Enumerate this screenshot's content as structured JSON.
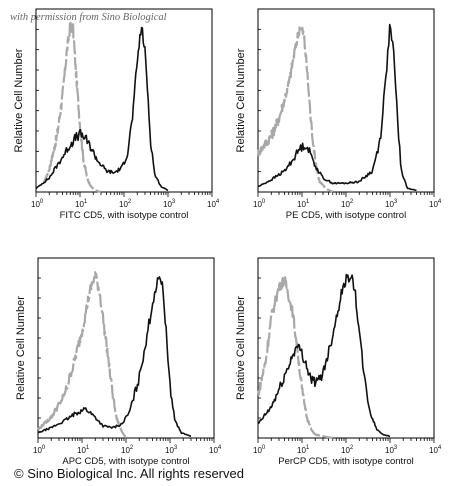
{
  "watermark": "with permission from Sino Biological",
  "copyright": "© Sino Biological Inc. All rights reserved",
  "colors": {
    "isotype": "#a8a8a8",
    "sample": "#111111",
    "frame": "#000000"
  },
  "chart_data": [
    {
      "type": "line",
      "xscale": "log",
      "xlim": [
        1,
        10000
      ],
      "ylabel": "Relative Cell Number",
      "xlabel": "FITC CD5, with isotype control",
      "xticks": [
        "10",
        "10",
        "10",
        "10",
        "10"
      ],
      "xtick_exponents": [
        "0",
        "1",
        "2",
        "3",
        "4"
      ],
      "series": [
        {
          "style": "dashed",
          "color": "#a8a8a8",
          "x": [
            1.5,
            2,
            3,
            4,
            5,
            6,
            7,
            8,
            10,
            12,
            15,
            18,
            22,
            30
          ],
          "y": [
            0.05,
            0.13,
            0.32,
            0.55,
            0.8,
            0.95,
            0.93,
            0.7,
            0.38,
            0.18,
            0.07,
            0.03,
            0.01,
            0
          ]
        },
        {
          "style": "solid",
          "color": "#111111",
          "x": [
            1,
            2,
            4,
            6,
            8,
            10,
            13,
            18,
            25,
            40,
            60,
            90,
            120,
            160,
            200,
            250,
            300,
            350,
            400,
            500,
            700,
            1000
          ],
          "y": [
            0.02,
            0.08,
            0.2,
            0.27,
            0.31,
            0.33,
            0.31,
            0.25,
            0.18,
            0.12,
            0.11,
            0.14,
            0.22,
            0.45,
            0.75,
            0.95,
            0.8,
            0.55,
            0.3,
            0.1,
            0.03,
            0.01
          ]
        }
      ]
    },
    {
      "type": "line",
      "xscale": "log",
      "xlim": [
        1,
        10000
      ],
      "ylabel": "Relative Cell Number",
      "xlabel": "PE CD5, with isotype control",
      "xticks": [
        "10",
        "10",
        "10",
        "10",
        "10"
      ],
      "xtick_exponents": [
        "0",
        "1",
        "2",
        "3",
        "4"
      ],
      "series": [
        {
          "style": "dashed",
          "color": "#a8a8a8",
          "x": [
            1,
            2,
            3,
            5,
            7,
            9,
            11,
            13,
            16,
            20,
            25,
            35,
            50
          ],
          "y": [
            0.22,
            0.32,
            0.42,
            0.62,
            0.82,
            0.95,
            0.9,
            0.7,
            0.4,
            0.18,
            0.06,
            0.02,
            0
          ]
        },
        {
          "style": "solid",
          "color": "#111111",
          "x": [
            1,
            2,
            4,
            6,
            9,
            12,
            15,
            20,
            30,
            50,
            100,
            200,
            400,
            600,
            800,
            1000,
            1200,
            1500,
            1800,
            2500,
            4000
          ],
          "y": [
            0.03,
            0.07,
            0.12,
            0.18,
            0.25,
            0.27,
            0.23,
            0.15,
            0.08,
            0.05,
            0.05,
            0.06,
            0.12,
            0.3,
            0.65,
            0.95,
            0.8,
            0.4,
            0.12,
            0.02,
            0.01
          ]
        }
      ]
    },
    {
      "type": "line",
      "xscale": "log",
      "xlim": [
        1,
        10000
      ],
      "ylabel": "Relative Cell Number",
      "xlabel": "APC CD5, with isotype control",
      "xticks": [
        "10",
        "10",
        "10",
        "10",
        "10"
      ],
      "xtick_exponents": [
        "0",
        "1",
        "2",
        "3",
        "4"
      ],
      "series": [
        {
          "style": "dashed",
          "color": "#a8a8a8",
          "x": [
            1,
            2,
            4,
            6,
            10,
            15,
            20,
            25,
            30,
            40,
            50,
            60,
            80,
            100
          ],
          "y": [
            0.05,
            0.12,
            0.25,
            0.4,
            0.62,
            0.85,
            0.95,
            0.85,
            0.7,
            0.45,
            0.25,
            0.12,
            0.04,
            0
          ]
        },
        {
          "style": "solid",
          "color": "#111111",
          "x": [
            1,
            2,
            4,
            8,
            12,
            15,
            20,
            30,
            50,
            80,
            120,
            200,
            300,
            450,
            600,
            700,
            800,
            1000,
            1300,
            1800,
            3000
          ],
          "y": [
            0.03,
            0.06,
            0.1,
            0.15,
            0.17,
            0.15,
            0.12,
            0.07,
            0.06,
            0.08,
            0.15,
            0.35,
            0.6,
            0.85,
            0.95,
            0.85,
            0.65,
            0.3,
            0.1,
            0.03,
            0.01
          ]
        }
      ]
    },
    {
      "type": "line",
      "xscale": "log",
      "xlim": [
        1,
        10000
      ],
      "ylabel": "Relative Cell Number",
      "xlabel": "PerCP CD5, with isotype control",
      "xticks": [
        "10",
        "10",
        "10",
        "10",
        "10"
      ],
      "xtick_exponents": [
        "0",
        "1",
        "2",
        "3",
        "4"
      ],
      "series": [
        {
          "style": "dashed",
          "color": "#a8a8a8",
          "x": [
            1,
            1.5,
            2,
            3,
            4,
            6,
            8,
            10,
            13,
            16,
            20,
            30,
            50
          ],
          "y": [
            0.25,
            0.45,
            0.7,
            0.88,
            0.92,
            0.75,
            0.5,
            0.28,
            0.12,
            0.05,
            0.02,
            0.01,
            0
          ]
        },
        {
          "style": "solid",
          "color": "#111111",
          "x": [
            1,
            2,
            3,
            5,
            7,
            9,
            12,
            16,
            22,
            30,
            45,
            60,
            80,
            100,
            130,
            160,
            200,
            260,
            350,
            500,
            700,
            1000
          ],
          "y": [
            0.08,
            0.18,
            0.28,
            0.42,
            0.52,
            0.52,
            0.44,
            0.34,
            0.32,
            0.38,
            0.55,
            0.7,
            0.85,
            0.92,
            0.95,
            0.85,
            0.62,
            0.35,
            0.15,
            0.05,
            0.02,
            0.01
          ]
        }
      ]
    }
  ]
}
